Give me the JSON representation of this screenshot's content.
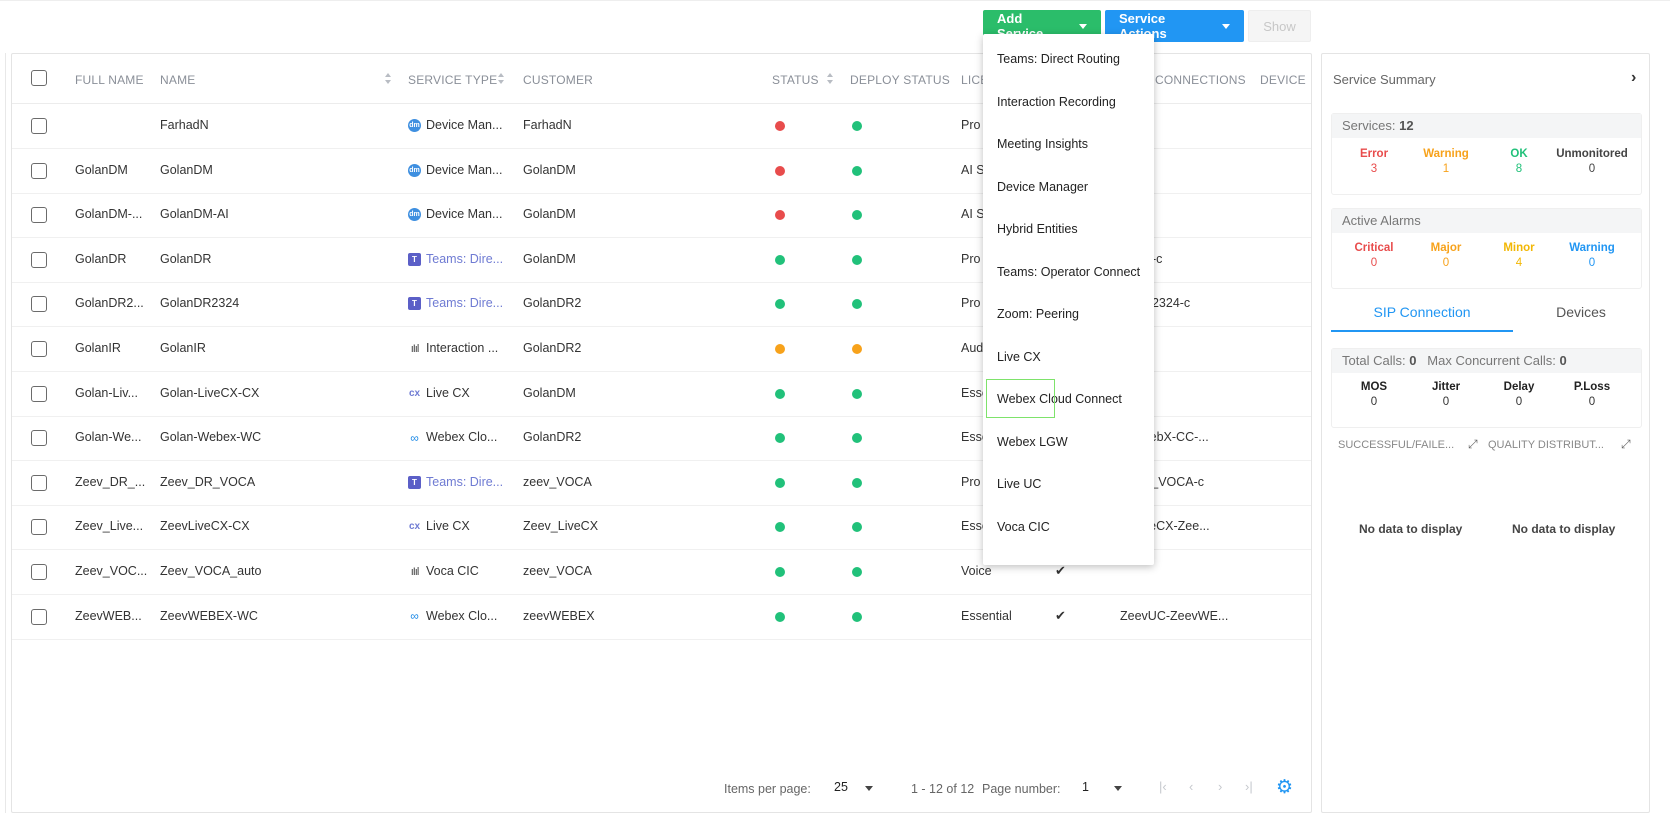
{
  "toolbar": {
    "add_service": "Add Service",
    "service_actions": "Service Actions",
    "show": "Show"
  },
  "table": {
    "headers": {
      "full_name": "FULL NAME",
      "name": "NAME",
      "service_type": "SERVICE TYPE",
      "customer": "CUSTOMER",
      "status": "STATUS",
      "deploy_status": "DEPLOY STATUS",
      "license": "LICE",
      "connections": "CONNECTIONS",
      "device": "DEVICE"
    },
    "rows": [
      {
        "full_name": "",
        "name": "FarhadN",
        "icon": "device-manager-icon",
        "service_type": "Device Man...",
        "customer": "FarhadN",
        "status": "#e84c4c",
        "deploy": "#21c17a",
        "license": "Pro",
        "check": "",
        "connection": ""
      },
      {
        "full_name": "GolanDM",
        "name": "GolanDM",
        "icon": "device-manager-icon",
        "service_type": "Device Man...",
        "customer": "GolanDM",
        "status": "#e84c4c",
        "deploy": "#21c17a",
        "license": "AI S",
        "check": "",
        "connection": ""
      },
      {
        "full_name": "GolanDM-...",
        "name": "GolanDM-AI",
        "icon": "device-manager-icon",
        "service_type": "Device Man...",
        "customer": "GolanDM",
        "status": "#e84c4c",
        "deploy": "#21c17a",
        "license": "AI S",
        "check": "",
        "connection": ""
      },
      {
        "full_name": "GolanDR",
        "name": "GolanDR",
        "icon": "teams-icon",
        "service_type": "Teams: Dire...",
        "customer": "GolanDM",
        "status": "#21c17a",
        "deploy": "#21c17a",
        "license": "Pro",
        "check": "",
        "connection": "anDR-c"
      },
      {
        "full_name": "GolanDR2...",
        "name": "GolanDR2324",
        "icon": "teams-icon",
        "service_type": "Teams: Dire...",
        "customer": "GolanDR2",
        "status": "#21c17a",
        "deploy": "#21c17a",
        "license": "Pro",
        "check": "",
        "connection": "anDR2324-c"
      },
      {
        "full_name": "GolanIR",
        "name": "GolanIR",
        "icon": "interaction-recording-icon",
        "service_type": "Interaction ...",
        "customer": "GolanDR2",
        "status": "#f7a21b",
        "deploy": "#f7a21b",
        "license": "Aud",
        "check": "",
        "connection": ""
      },
      {
        "full_name": "Golan-Liv...",
        "name": "Golan-LiveCX-CX",
        "icon": "live-cx-icon",
        "service_type": "Live CX",
        "customer": "GolanDM",
        "status": "#21c17a",
        "deploy": "#21c17a",
        "license": "Esse",
        "check": "",
        "connection": ""
      },
      {
        "full_name": "Golan-We...",
        "name": "Golan-Webex-WC",
        "icon": "webex-icon",
        "service_type": "Webex Clo...",
        "customer": "GolanDR2",
        "status": "#21c17a",
        "deploy": "#21c17a",
        "license": "Esse",
        "check": "",
        "connection": "an-WebX-CC-..."
      },
      {
        "full_name": "Zeev_DR_...",
        "name": "Zeev_DR_VOCA",
        "icon": "teams-icon",
        "service_type": "Teams: Dire...",
        "customer": "zeev_VOCA",
        "status": "#21c17a",
        "deploy": "#21c17a",
        "license": "Pro",
        "check": "",
        "connection": "v_DR_VOCA-c"
      },
      {
        "full_name": "Zeev_Live...",
        "name": "ZeevLiveCX-CX",
        "icon": "live-cx-icon",
        "service_type": "Live CX",
        "customer": "Zeev_LiveCX",
        "status": "#21c17a",
        "deploy": "#21c17a",
        "license": "Esse",
        "check": "",
        "connection": "v_LiveCX-Zee..."
      },
      {
        "full_name": "Zeev_VOC...",
        "name": "Zeev_VOCA_auto",
        "icon": "voca-cic-icon",
        "service_type": "Voca CIC",
        "customer": "zeev_VOCA",
        "status": "#21c17a",
        "deploy": "#21c17a",
        "license": "Voice",
        "check": "✔",
        "connection": ""
      },
      {
        "full_name": "ZeevWEB...",
        "name": "ZeevWEBEX-WC",
        "icon": "webex-icon",
        "service_type": "Webex Clo...",
        "customer": "zeevWEBEX",
        "status": "#21c17a",
        "deploy": "#21c17a",
        "license": "Essential",
        "check": "✔",
        "connection": "ZeevUC-ZeevWE..."
      }
    ]
  },
  "pagination": {
    "items_label": "Items per page:",
    "items_value": "25",
    "range": "1 - 12 of 12",
    "page_label": "Page number:",
    "page_value": "1"
  },
  "add_service_menu": [
    "Teams: Direct Routing",
    "Interaction Recording",
    "Meeting Insights",
    "Device Manager",
    "Hybrid Entities",
    "Teams: Operator Connect",
    "Zoom: Peering",
    "Live CX",
    "Webex Cloud Connect",
    "Webex LGW",
    "Live UC",
    "Voca CIC"
  ],
  "summary": {
    "title": "Service Summary",
    "services_label": "Services:",
    "services_count": "12",
    "service_stats": [
      {
        "label": "Error",
        "value": "3",
        "color": "#e84c4c"
      },
      {
        "label": "Warning",
        "value": "1",
        "color": "#f7a21b"
      },
      {
        "label": "OK",
        "value": "8",
        "color": "#21c17a"
      },
      {
        "label": "Unmonitored",
        "value": "0",
        "color": "#444444"
      }
    ],
    "alarms_label": "Active Alarms",
    "alarm_stats": [
      {
        "label": "Critical",
        "value": "0",
        "color": "#e84c4c"
      },
      {
        "label": "Major",
        "value": "0",
        "color": "#f7a21b"
      },
      {
        "label": "Minor",
        "value": "4",
        "color": "#f2b705"
      },
      {
        "label": "Warning",
        "value": "0",
        "color": "#2196f3"
      }
    ],
    "tabs": [
      "SIP Connection",
      "Devices"
    ],
    "calls": {
      "total_label": "Total Calls:",
      "total_value": "0",
      "max_label": "Max Concurrent Calls:",
      "max_value": "0"
    },
    "quality_stats": [
      {
        "label": "MOS",
        "value": "0"
      },
      {
        "label": "Jitter",
        "value": "0"
      },
      {
        "label": "Delay",
        "value": "0"
      },
      {
        "label": "P.Loss",
        "value": "0"
      }
    ],
    "chart_titles": [
      "SUCCESSFUL/FAILE...",
      "QUALITY DISTRIBUT..."
    ],
    "no_data": "No data to display"
  }
}
